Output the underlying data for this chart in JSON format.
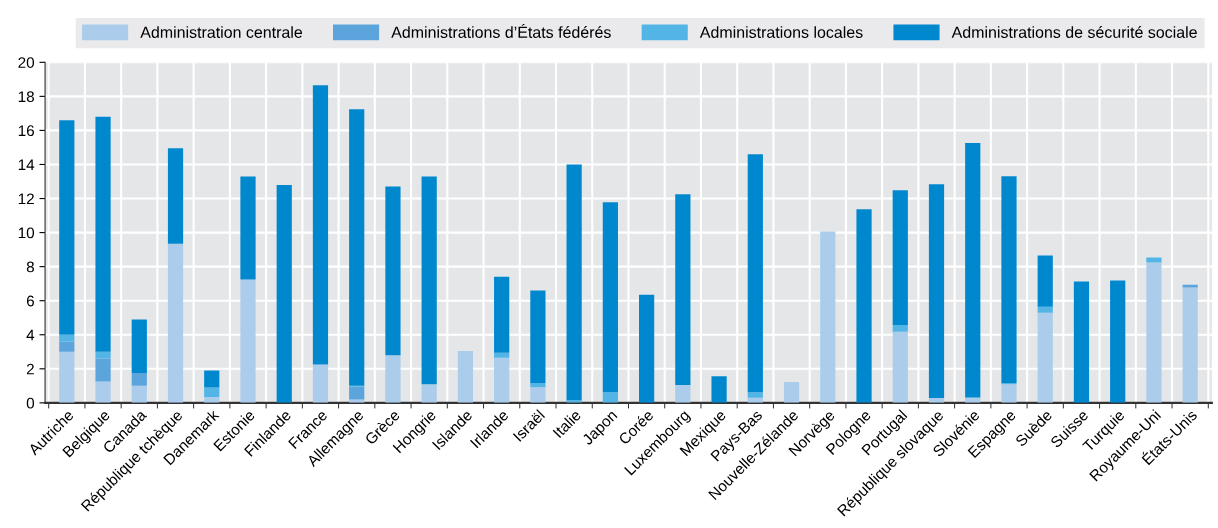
{
  "chart_data": {
    "type": "bar",
    "stacked": true,
    "categories": [
      "Autriche",
      "Belgique",
      "Canada",
      "République tchèque",
      "Danemark",
      "Estonie",
      "Finlande",
      "France",
      "Allemagne",
      "Grèce",
      "Hongrie",
      "Islande",
      "Irlande",
      "Israël",
      "Italie",
      "Japon",
      "Corée",
      "Luxembourg",
      "Mexique",
      "Pays-Bas",
      "Nouvelle-Zélande",
      "Norvège",
      "Pologne",
      "Portugal",
      "République slovaque",
      "Slovénie",
      "Espagne",
      "Suède",
      "Suisse",
      "Turquie",
      "Royaume-Uni",
      "États-Unis"
    ],
    "series": [
      {
        "name": "Administration centrale",
        "color": "#abcdeb",
        "values": [
          3.0,
          1.25,
          1.0,
          9.35,
          0.35,
          7.25,
          0,
          2.25,
          0.2,
          2.8,
          1.1,
          3.05,
          2.65,
          0.92,
          0,
          0,
          0,
          1.05,
          0,
          0.3,
          1.22,
          10.07,
          0,
          4.17,
          0.28,
          0.28,
          1.1,
          5.29,
          0,
          0,
          8.24,
          6.77
        ]
      },
      {
        "name": "Administrations d’États fédérés",
        "color": "#5ba4dc",
        "values": [
          0.6,
          1.35,
          0.75,
          0,
          0,
          0,
          0,
          0,
          0.75,
          0,
          0,
          0,
          0,
          0,
          0,
          0,
          0,
          0,
          0,
          0,
          0,
          0,
          0,
          0,
          0,
          0,
          0,
          0,
          0,
          0,
          0,
          0.17
        ]
      },
      {
        "name": "Administrations locales",
        "color": "#52b5e6",
        "values": [
          0.4,
          0.4,
          0,
          0,
          0.55,
          0,
          0,
          0,
          0.05,
          0,
          0,
          0,
          0.3,
          0.24,
          0.15,
          0.63,
          0,
          0,
          0,
          0.33,
          0,
          0,
          0,
          0.41,
          0,
          0.05,
          0.06,
          0.35,
          0,
          0,
          0.29,
          0
        ]
      },
      {
        "name": "Administrations de sécurité sociale",
        "color": "#0088cf",
        "values": [
          12.6,
          13.8,
          3.15,
          5.6,
          1.0,
          6.05,
          12.8,
          16.4,
          16.25,
          9.9,
          12.2,
          0,
          4.45,
          5.44,
          13.85,
          11.15,
          6.35,
          11.2,
          1.57,
          13.97,
          0,
          0,
          11.37,
          7.91,
          12.56,
          14.93,
          12.15,
          3.01,
          7.12,
          7.18,
          0,
          0
        ]
      }
    ],
    "ylim": [
      0,
      20
    ],
    "yticks": [
      0,
      2,
      4,
      6,
      8,
      10,
      12,
      14,
      16,
      18,
      20
    ],
    "grid": true,
    "legend": "top"
  }
}
